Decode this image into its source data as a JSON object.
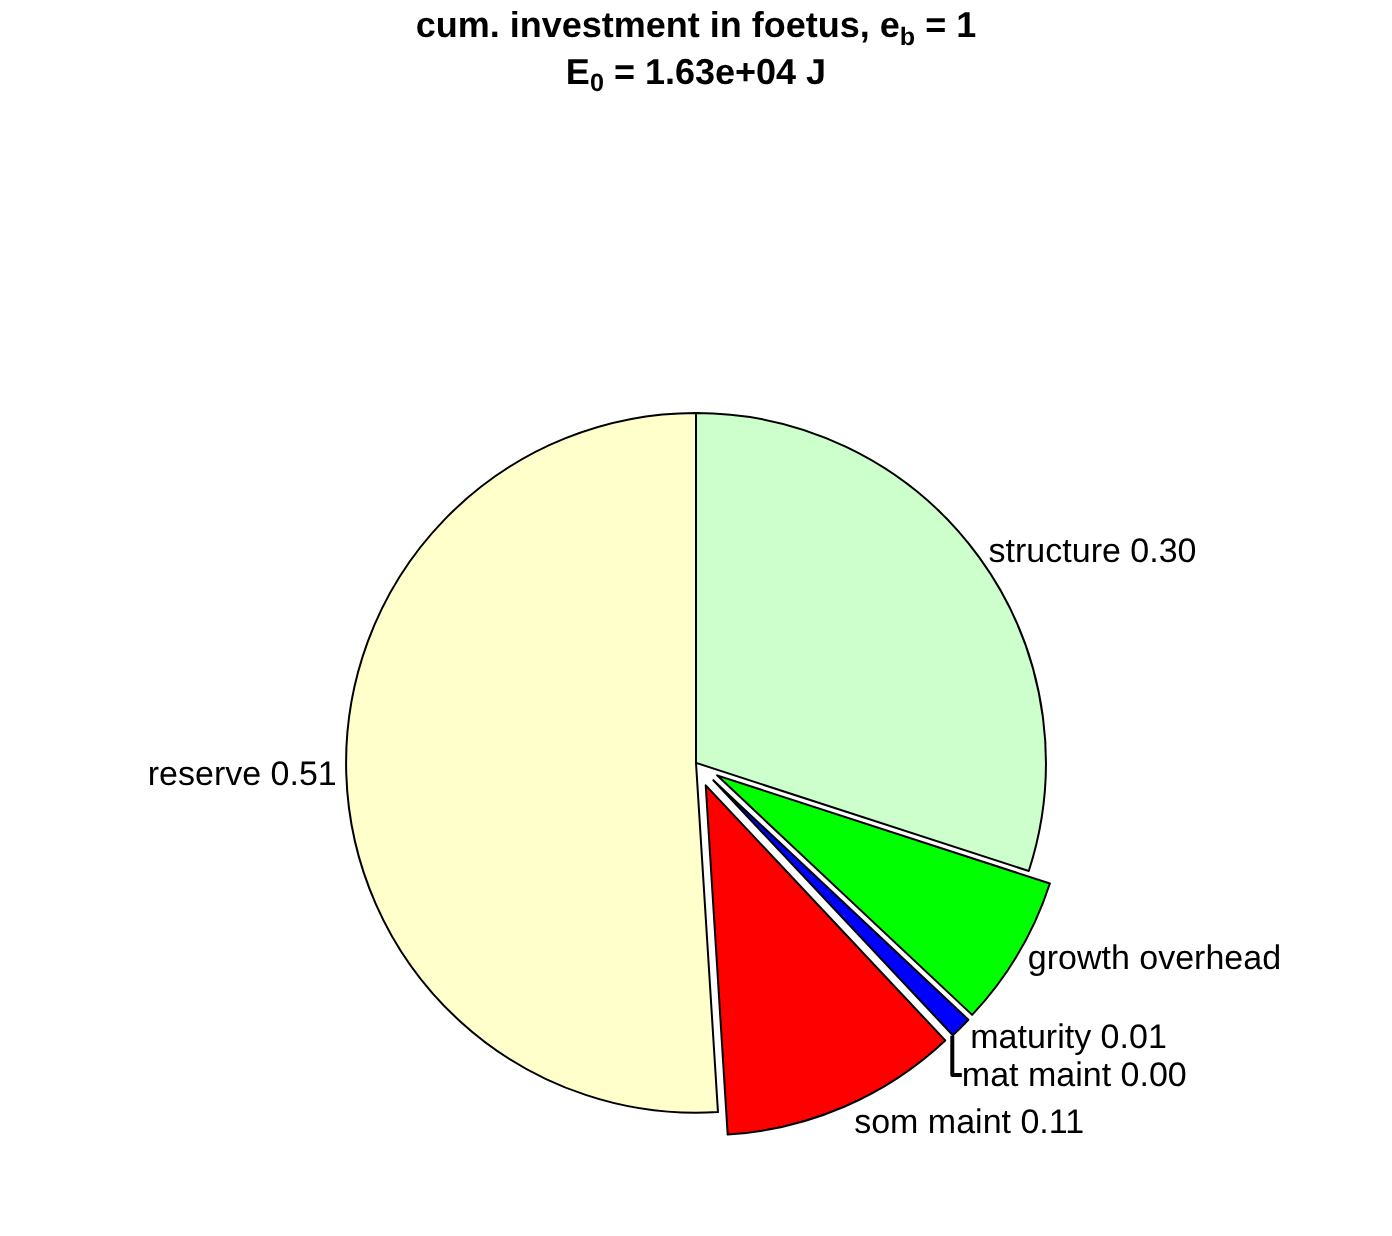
{
  "chart_data": {
    "type": "pie",
    "title": "cum. investment in foetus, e$_{b}$ = 1",
    "subtitle": "E$_{0}$ = 1.63e+04 J",
    "categories": [
      "structure 0.30",
      "growth overhead",
      "maturity 0.01",
      "mat maint 0.00",
      "som maint 0.11",
      "reserve 0.51"
    ],
    "values": [
      0.3,
      0.07,
      0.01,
      0.0,
      0.11,
      0.51
    ],
    "colors": [
      "#ccffcc",
      "#00ff00",
      "#0000ff",
      "#ff00ff",
      "#ff0000",
      "#ffffcc"
    ],
    "legend": false
  }
}
